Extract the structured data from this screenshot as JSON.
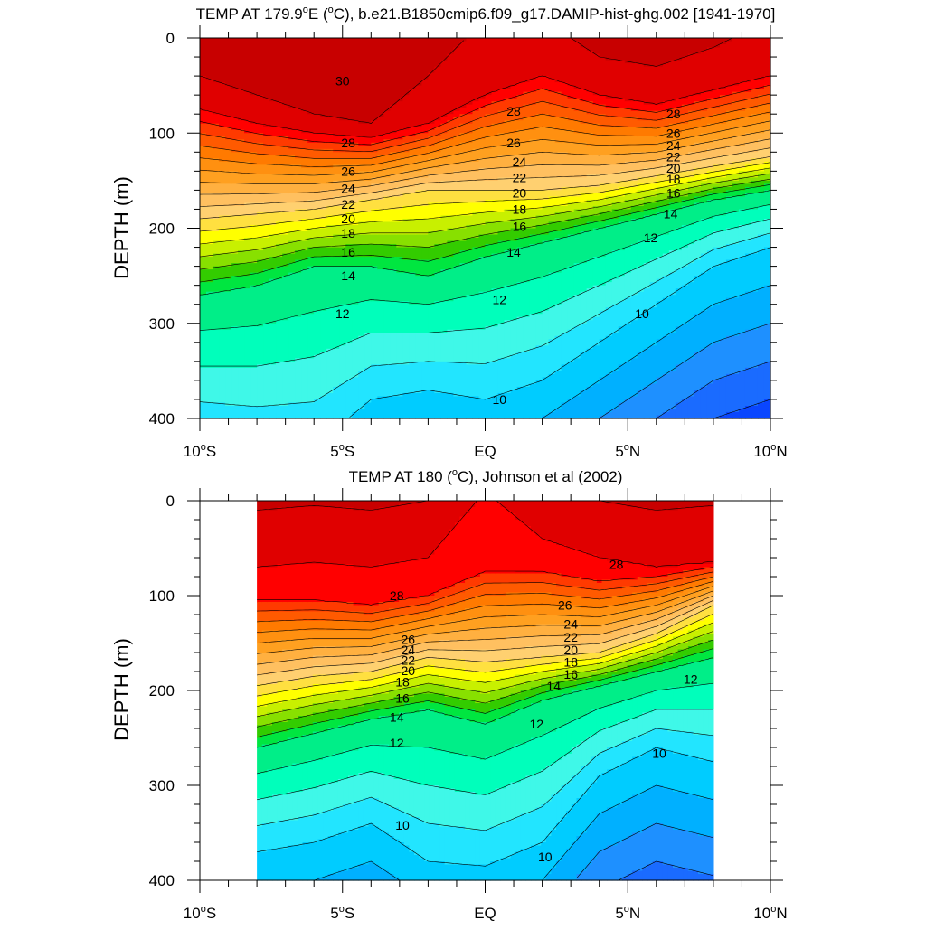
{
  "chart_data": [
    {
      "type": "contour",
      "title": "TEMP AT 179.9°E (°C), b.e21.B1850cmip6.f09_g17.DAMIP-hist-ghg.002 [1941-1970]",
      "title_parts": {
        "pre": "TEMP AT 179.9",
        "deg": "o",
        "mid": "E (",
        "deg2": "o",
        "post": "C), b.e21.B1850cmip6.f09_g17.DAMIP-hist-ghg.002 [1941-1970]"
      },
      "ylabel": "DEPTH (m)",
      "xlim": [
        -10,
        10
      ],
      "ylim": [
        400,
        0
      ],
      "x_ticks": [
        {
          "value": -10,
          "num": "10",
          "sup": "o",
          "hem": "S"
        },
        {
          "value": -5,
          "num": "5",
          "sup": "o",
          "hem": "S"
        },
        {
          "value": 0,
          "num": "EQ",
          "sup": "",
          "hem": ""
        },
        {
          "value": 5,
          "num": "5",
          "sup": "o",
          "hem": "N"
        },
        {
          "value": 10,
          "num": "10",
          "sup": "o",
          "hem": "N"
        }
      ],
      "y_ticks": [
        0,
        100,
        200,
        300,
        400
      ],
      "data_lon_range": [
        -10,
        10
      ],
      "contour_interval": 1,
      "colors": [
        "#0000ff",
        "#0a46ff",
        "#1a6bff",
        "#1e90ff",
        "#00b0ff",
        "#00ccff",
        "#22e5ff",
        "#3ff8e8",
        "#00ffbb",
        "#00ee88",
        "#00e640",
        "#33cc00",
        "#88e000",
        "#c8f000",
        "#ffff00",
        "#ffe040",
        "#ffd070",
        "#ffc060",
        "#ffb040",
        "#ffa020",
        "#ff9010",
        "#ff7a00",
        "#ff5a00",
        "#ff3a00",
        "#ff0000",
        "#e00000",
        "#c80000"
      ],
      "depth_profile": {
        "x": [
          -10,
          -8,
          -6,
          -4,
          -2,
          0,
          2,
          4,
          6,
          8,
          10
        ],
        "t30": [
          40,
          60,
          80,
          90,
          40,
          -20,
          -20,
          20,
          30,
          10,
          -20
        ],
        "t29": [
          75,
          90,
          100,
          105,
          90,
          60,
          40,
          60,
          70,
          55,
          40
        ],
        "t20": [
          190,
          185,
          180,
          170,
          160,
          160,
          160,
          155,
          145,
          135,
          125
        ],
        "t14": [
          270,
          260,
          240,
          240,
          250,
          230,
          215,
          200,
          185,
          170,
          160
        ],
        "t10": [
          420,
          430,
          430,
          380,
          370,
          380,
          360,
          320,
          280,
          240,
          220
        ]
      },
      "contour_labels": [
        {
          "lon": -5.0,
          "depth": 45,
          "text": "30"
        },
        {
          "lon": -4.8,
          "depth": 110,
          "text": "28"
        },
        {
          "lon": -4.8,
          "depth": 140,
          "text": "26"
        },
        {
          "lon": -4.8,
          "depth": 158,
          "text": "24"
        },
        {
          "lon": -4.8,
          "depth": 175,
          "text": "22"
        },
        {
          "lon": -4.8,
          "depth": 190,
          "text": "20"
        },
        {
          "lon": -4.8,
          "depth": 205,
          "text": "18"
        },
        {
          "lon": -4.8,
          "depth": 225,
          "text": "16"
        },
        {
          "lon": -4.8,
          "depth": 250,
          "text": "14"
        },
        {
          "lon": -5.0,
          "depth": 290,
          "text": "12"
        },
        {
          "lon": 1.0,
          "depth": 77,
          "text": "28"
        },
        {
          "lon": 1.0,
          "depth": 110,
          "text": "26"
        },
        {
          "lon": 1.2,
          "depth": 130,
          "text": "24"
        },
        {
          "lon": 1.2,
          "depth": 147,
          "text": "22"
        },
        {
          "lon": 1.2,
          "depth": 163,
          "text": "20"
        },
        {
          "lon": 1.2,
          "depth": 180,
          "text": "18"
        },
        {
          "lon": 1.2,
          "depth": 198,
          "text": "16"
        },
        {
          "lon": 1.0,
          "depth": 225,
          "text": "14"
        },
        {
          "lon": 0.5,
          "depth": 275,
          "text": "12"
        },
        {
          "lon": 0.5,
          "depth": 380,
          "text": "10"
        },
        {
          "lon": 6.6,
          "depth": 80,
          "text": "28"
        },
        {
          "lon": 6.6,
          "depth": 100,
          "text": "26"
        },
        {
          "lon": 6.6,
          "depth": 113,
          "text": "24"
        },
        {
          "lon": 6.6,
          "depth": 125,
          "text": "22"
        },
        {
          "lon": 6.6,
          "depth": 137,
          "text": "20"
        },
        {
          "lon": 6.6,
          "depth": 148,
          "text": "18"
        },
        {
          "lon": 6.6,
          "depth": 163,
          "text": "16"
        },
        {
          "lon": 6.5,
          "depth": 185,
          "text": "14"
        },
        {
          "lon": 5.8,
          "depth": 210,
          "text": "12"
        },
        {
          "lon": 5.5,
          "depth": 290,
          "text": "10"
        }
      ]
    },
    {
      "type": "contour",
      "title": "TEMP AT 180 (°C), Johnson et al (2002)",
      "title_parts": {
        "pre": "TEMP AT 180 (",
        "deg": "o",
        "post": "C), Johnson et al (2002)"
      },
      "ylabel": "DEPTH (m)",
      "xlim": [
        -10,
        10
      ],
      "ylim": [
        400,
        0
      ],
      "x_ticks": [
        {
          "value": -10,
          "num": "10",
          "sup": "o",
          "hem": "S"
        },
        {
          "value": -5,
          "num": "5",
          "sup": "o",
          "hem": "S"
        },
        {
          "value": 0,
          "num": "EQ",
          "sup": "",
          "hem": ""
        },
        {
          "value": 5,
          "num": "5",
          "sup": "o",
          "hem": "N"
        },
        {
          "value": 10,
          "num": "10",
          "sup": "o",
          "hem": "N"
        }
      ],
      "y_ticks": [
        0,
        100,
        200,
        300,
        400
      ],
      "data_lon_range": [
        -8,
        8
      ],
      "contour_interval": 1,
      "colors": [
        "#0000ff",
        "#0a46ff",
        "#1a6bff",
        "#1e90ff",
        "#00b0ff",
        "#00ccff",
        "#22e5ff",
        "#3ff8e8",
        "#00ffbb",
        "#00ee88",
        "#00e640",
        "#33cc00",
        "#88e000",
        "#c8f000",
        "#ffff00",
        "#ffe040",
        "#ffd070",
        "#ffc060",
        "#ffb040",
        "#ffa020",
        "#ff9010",
        "#ff7a00",
        "#ff5a00",
        "#ff3a00",
        "#ff0000",
        "#e00000",
        "#c80000"
      ],
      "depth_profile": {
        "x": [
          -8,
          -6,
          -4,
          -2,
          0,
          2,
          4,
          6,
          8
        ],
        "t29": [
          70,
          65,
          70,
          60,
          -10,
          40,
          60,
          70,
          65
        ],
        "t28": [
          105,
          105,
          110,
          100,
          75,
          75,
          85,
          80,
          70
        ],
        "t20": [
          195,
          185,
          180,
          165,
          170,
          165,
          160,
          140,
          110
        ],
        "t14": [
          260,
          245,
          230,
          220,
          235,
          210,
          195,
          180,
          165
        ],
        "t10": [
          370,
          360,
          340,
          380,
          385,
          360,
          290,
          260,
          275
        ]
      },
      "contour_labels": [
        {
          "lon": -3.1,
          "depth": 100,
          "text": "28"
        },
        {
          "lon": 4.6,
          "depth": 67,
          "text": "28"
        },
        {
          "lon": 2.8,
          "depth": 110,
          "text": "26"
        },
        {
          "lon": 3.0,
          "depth": 130,
          "text": "24"
        },
        {
          "lon": 3.0,
          "depth": 144,
          "text": "22"
        },
        {
          "lon": 3.0,
          "depth": 157,
          "text": "20"
        },
        {
          "lon": 3.0,
          "depth": 170,
          "text": "18"
        },
        {
          "lon": 3.0,
          "depth": 183,
          "text": "16"
        },
        {
          "lon": 2.4,
          "depth": 195,
          "text": "14"
        },
        {
          "lon": 1.8,
          "depth": 235,
          "text": "12"
        },
        {
          "lon": 7.2,
          "depth": 188,
          "text": "12"
        },
        {
          "lon": -2.7,
          "depth": 146,
          "text": "26"
        },
        {
          "lon": -2.7,
          "depth": 157,
          "text": "24"
        },
        {
          "lon": -2.7,
          "depth": 168,
          "text": "22"
        },
        {
          "lon": -2.7,
          "depth": 179,
          "text": "20"
        },
        {
          "lon": -2.9,
          "depth": 191,
          "text": "18"
        },
        {
          "lon": -2.9,
          "depth": 208,
          "text": "16"
        },
        {
          "lon": -3.1,
          "depth": 228,
          "text": "14"
        },
        {
          "lon": -3.1,
          "depth": 255,
          "text": "12"
        },
        {
          "lon": -2.9,
          "depth": 342,
          "text": "10"
        },
        {
          "lon": 2.1,
          "depth": 375,
          "text": "10"
        },
        {
          "lon": 6.1,
          "depth": 266,
          "text": "10"
        }
      ]
    }
  ]
}
